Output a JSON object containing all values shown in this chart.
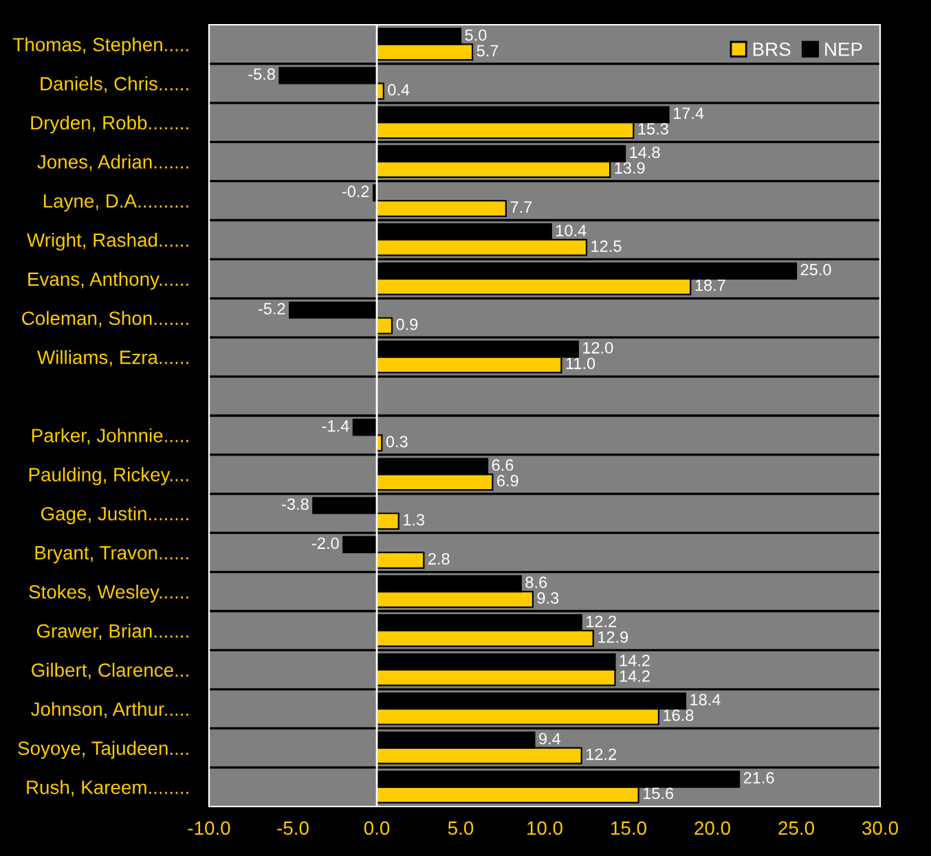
{
  "chart_data": {
    "type": "bar",
    "orientation": "horizontal",
    "categories": [
      "Thomas, Stephen.....",
      "Daniels, Chris......",
      "Dryden, Robb........",
      "Jones, Adrian.......",
      "Layne, D.A..........",
      "Wright, Rashad......",
      "Evans, Anthony......",
      "Coleman, Shon.......",
      "Williams, Ezra......",
      null,
      "Parker, Johnnie.....",
      "Paulding, Rickey....",
      "Gage, Justin........",
      "Bryant, Travon......",
      "Stokes, Wesley......",
      "Grawer, Brian.......",
      "Gilbert, Clarence...",
      "Johnson, Arthur.....",
      "Soyoye, Tajudeen....",
      "Rush, Kareem........"
    ],
    "series": [
      {
        "name": "BRS",
        "color": "#ffcc00",
        "values": [
          5.7,
          0.4,
          15.3,
          13.9,
          7.7,
          12.5,
          18.7,
          0.9,
          11.0,
          null,
          0.3,
          6.9,
          1.3,
          2.8,
          9.3,
          12.9,
          14.2,
          16.8,
          12.2,
          15.6
        ],
        "value_labels": [
          "5.7",
          "0.4",
          "15.3",
          "13.9",
          "7.7",
          "12.5",
          "18.7",
          "0.9",
          "11.0",
          null,
          "0.3",
          "6.9",
          "1.3",
          "2.8",
          "9.3",
          "12.9",
          "14.2",
          "16.8",
          "12.2",
          "15.6"
        ]
      },
      {
        "name": "NEP",
        "color": "#000000",
        "values": [
          5.0,
          -5.8,
          17.4,
          14.8,
          -0.2,
          10.4,
          25.0,
          -5.2,
          12.0,
          null,
          -1.4,
          6.6,
          -3.8,
          -2.0,
          8.6,
          12.2,
          14.2,
          18.4,
          9.4,
          21.6
        ],
        "value_labels": [
          "5.0",
          "-5.8",
          "17.4",
          "14.8",
          "-0.2",
          "10.4",
          "25.0",
          "-5.2",
          "12.0",
          null,
          "-1.4",
          "6.6",
          "-3.8",
          "-2.0",
          "8.6",
          "12.2",
          "14.2",
          "18.4",
          "9.4",
          "21.6"
        ]
      }
    ],
    "xlim": [
      -10,
      30
    ],
    "xticks": [
      {
        "value": -10,
        "label": "-10.0"
      },
      {
        "value": -5,
        "label": "-5.0"
      },
      {
        "value": 0,
        "label": "0.0"
      },
      {
        "value": 5,
        "label": "5.0"
      },
      {
        "value": 10,
        "label": "10.0"
      },
      {
        "value": 15,
        "label": "15.0"
      },
      {
        "value": 20,
        "label": "20.0"
      },
      {
        "value": 25,
        "label": "25.0"
      },
      {
        "value": 30,
        "label": "30.0"
      }
    ],
    "ref_lines": [
      {
        "axis": "x",
        "value": 0,
        "color": "#ffffff"
      }
    ],
    "grid": "y",
    "legend": "top right"
  }
}
